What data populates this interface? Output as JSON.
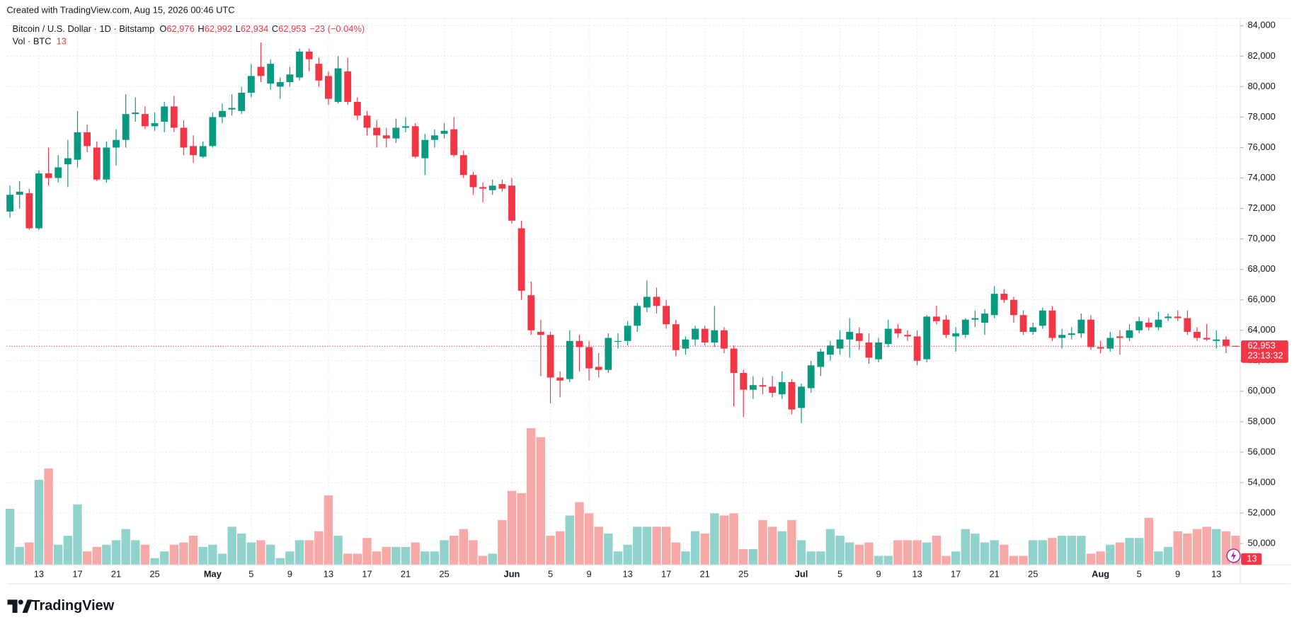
{
  "header": {
    "created": "Created with TradingView.com, Aug 15, 2026 00:46 UTC",
    "symbol": "Bitcoin / U.S. Dollar · 1D · Bitstamp",
    "ohlc": [
      {
        "key": "O",
        "label": "62,976"
      },
      {
        "key": "H",
        "label": "62,992"
      },
      {
        "key": "L",
        "label": "62,934"
      },
      {
        "key": "C",
        "label": "62,953"
      }
    ],
    "change": "−23 (−0.04%)",
    "volume_title": "Vol · BTC",
    "volume_label": "13"
  },
  "price_tag": {
    "label": "62,953",
    "countdown": "23:13:32"
  },
  "volume_tag": "13",
  "logo": "TradingView",
  "chart_data": {
    "type": "candlestick",
    "up_color": "#089981",
    "down_color": "#f23645",
    "up_volume_color": "#92d2cc",
    "down_volume_color": "#f7a9a7",
    "grid": true,
    "open": [
      71800,
      72900,
      73000,
      70700,
      74300,
      74000,
      74900,
      75200,
      77000,
      76000,
      73900,
      76000,
      76500,
      78200,
      78200,
      77400,
      77700,
      78700,
      77300,
      76100,
      75400,
      76100,
      78000,
      78500,
      78400,
      79600,
      81300,
      80200,
      80000,
      80300,
      80600,
      82300,
      81500,
      80700,
      79000,
      81000,
      79000,
      78100,
      77300,
      76800,
      76600,
      77300,
      77400,
      75300,
      76500,
      76900,
      77200,
      75500,
      74200,
      73400,
      73200,
      73600,
      73500,
      70700,
      66300,
      63900,
      63700,
      60900,
      60800,
      63300,
      62900,
      61600,
      61400,
      63300,
      63300,
      64300,
      65500,
      66200,
      65600,
      64400,
      62800,
      63400,
      64100,
      63200,
      64000,
      62800,
      61200,
      60100,
      60400,
      60300,
      59800,
      60600,
      58900,
      60200,
      61600,
      62400,
      62800,
      63400,
      63800,
      63200,
      62100,
      63100,
      64100,
      63700,
      63600,
      62100,
      64900,
      64700,
      63600,
      63700,
      64700,
      64500,
      65000,
      66400,
      66000,
      65000,
      63900,
      64300,
      65300,
      63500,
      63700,
      63800,
      64700,
      62900,
      62800,
      63600,
      63500,
      64000,
      64500,
      64200,
      64800,
      64900,
      64800,
      63900,
      63500,
      63300,
      63400,
      62976
    ],
    "high": [
      73500,
      73800,
      73300,
      74500,
      76000,
      75500,
      76500,
      78400,
      77500,
      76400,
      76400,
      77200,
      79500,
      79300,
      78700,
      78300,
      79000,
      79400,
      77800,
      76800,
      76400,
      78300,
      78900,
      79500,
      80000,
      81500,
      82900,
      81800,
      80600,
      81300,
      82500,
      82500,
      81900,
      81000,
      82000,
      81900,
      79300,
      78400,
      77800,
      77300,
      77900,
      78000,
      77600,
      76900,
      77200,
      77600,
      78000,
      75800,
      74400,
      73700,
      73900,
      73900,
      74000,
      71200,
      67200,
      64700,
      63900,
      61300,
      64000,
      63700,
      63300,
      62500,
      63800,
      63800,
      64600,
      65800,
      67300,
      66800,
      66000,
      64700,
      63600,
      64300,
      64300,
      65600,
      64200,
      63000,
      61400,
      61000,
      60900,
      61000,
      61300,
      60800,
      60500,
      62000,
      62800,
      63300,
      64000,
      64800,
      64200,
      63800,
      63500,
      64700,
      64400,
      64000,
      64000,
      65000,
      65600,
      65000,
      64200,
      64800,
      65300,
      65400,
      66900,
      66700,
      66200,
      65300,
      64500,
      65500,
      65600,
      64100,
      64200,
      65100,
      65000,
      63300,
      63900,
      64000,
      64400,
      64900,
      64800,
      65200,
      65100,
      65300,
      65300,
      64200,
      64400,
      64000,
      63600,
      62992
    ],
    "low": [
      71400,
      72000,
      70600,
      70600,
      73500,
      73700,
      73400,
      74700,
      75700,
      73800,
      73700,
      74800,
      76000,
      77700,
      77200,
      77100,
      77000,
      77000,
      75500,
      75000,
      75300,
      76000,
      77600,
      78100,
      78200,
      79300,
      80300,
      79800,
      79200,
      80000,
      80400,
      81000,
      80000,
      78800,
      78900,
      78800,
      77800,
      76800,
      76000,
      76000,
      76300,
      77000,
      75300,
      74200,
      76000,
      76600,
      75400,
      74000,
      72900,
      72400,
      72900,
      73100,
      71000,
      66000,
      63700,
      61000,
      59200,
      59600,
      60600,
      61300,
      60700,
      60900,
      61200,
      62800,
      63000,
      63900,
      65200,
      65100,
      64100,
      62300,
      62400,
      63000,
      63000,
      62900,
      62500,
      59000,
      58300,
      59500,
      59800,
      59600,
      59500,
      58500,
      57900,
      59900,
      61000,
      62000,
      62400,
      62200,
      62700,
      61800,
      61900,
      62900,
      63500,
      63300,
      61700,
      61900,
      64400,
      63500,
      62600,
      63500,
      64200,
      63700,
      64800,
      65800,
      64500,
      63700,
      63700,
      64100,
      63300,
      62800,
      63400,
      63500,
      62700,
      62500,
      62600,
      62400,
      63300,
      63800,
      64000,
      64000,
      64600,
      64600,
      63700,
      63300,
      63300,
      62800,
      62500,
      62934
    ],
    "close": [
      72900,
      73100,
      70700,
      74300,
      74000,
      74700,
      75300,
      77000,
      76100,
      73900,
      76000,
      76500,
      78200,
      78300,
      77400,
      77600,
      78700,
      77300,
      76000,
      75500,
      76100,
      78000,
      78400,
      78600,
      79600,
      80700,
      80700,
      81500,
      80300,
      80800,
      82300,
      81800,
      80400,
      79200,
      81200,
      79000,
      78100,
      77300,
      76800,
      76600,
      77300,
      77400,
      75400,
      76500,
      76800,
      77100,
      75500,
      74200,
      73400,
      73300,
      73500,
      73300,
      71200,
      66600,
      64000,
      63700,
      60900,
      60700,
      63300,
      62900,
      61500,
      61400,
      63500,
      63300,
      64300,
      65600,
      66200,
      65600,
      64400,
      62700,
      63400,
      64100,
      63200,
      64000,
      62800,
      61200,
      60100,
      60400,
      60300,
      59900,
      60600,
      58800,
      60300,
      61700,
      62600,
      63000,
      63400,
      63900,
      63300,
      62200,
      63200,
      64100,
      63800,
      63600,
      62000,
      64900,
      64600,
      63700,
      63800,
      64700,
      64800,
      65100,
      66400,
      66000,
      65000,
      63900,
      64200,
      65300,
      63500,
      63700,
      63800,
      64700,
      62900,
      62800,
      63500,
      63500,
      64000,
      64600,
      64200,
      64700,
      64900,
      64800,
      63900,
      63500,
      63400,
      63400,
      62976,
      62953
    ],
    "volume": [
      25,
      8,
      10,
      38,
      43,
      9,
      13,
      27,
      6,
      8,
      9,
      11,
      16,
      11,
      9,
      3,
      6,
      9,
      10,
      13,
      8,
      9,
      5,
      17,
      14,
      10,
      11,
      9,
      3,
      6,
      11,
      11,
      15,
      31,
      13,
      5,
      5,
      12,
      6,
      8,
      8,
      8,
      10,
      6,
      6,
      11,
      13,
      16,
      11,
      4,
      5,
      20,
      33,
      32,
      61,
      57,
      13,
      15,
      22,
      28,
      23,
      17,
      14,
      6,
      9,
      17,
      17,
      17,
      17,
      10,
      6,
      15,
      14,
      23,
      22,
      23,
      7,
      7,
      20,
      17,
      15,
      20,
      11,
      6,
      6,
      16,
      13,
      10,
      9,
      10,
      4,
      4,
      11,
      11,
      11,
      10,
      13,
      4,
      6,
      16,
      14,
      10,
      11,
      9,
      4,
      4,
      11,
      11,
      12,
      13,
      13,
      13,
      5,
      6,
      9,
      10,
      12,
      12,
      21,
      6,
      8,
      15,
      14,
      16,
      17,
      16,
      15,
      13
    ],
    "ylim": [
      48600,
      84490
    ],
    "yticks": [
      {
        "value": 50000,
        "label": "50,000"
      },
      {
        "value": 52000,
        "label": "52,000"
      },
      {
        "value": 54000,
        "label": "54,000"
      },
      {
        "value": 56000,
        "label": "56,000"
      },
      {
        "value": 58000,
        "label": "58,000"
      },
      {
        "value": 60000,
        "label": "60,000"
      },
      {
        "value": 62000,
        "label": "62,000"
      },
      {
        "value": 64000,
        "label": "64,000"
      },
      {
        "value": 66000,
        "label": "66,000"
      },
      {
        "value": 68000,
        "label": "68,000"
      },
      {
        "value": 70000,
        "label": "70,000"
      },
      {
        "value": 72000,
        "label": "72,000"
      },
      {
        "value": 74000,
        "label": "74,000"
      },
      {
        "value": 76000,
        "label": "76,000"
      },
      {
        "value": 78000,
        "label": "78,000"
      },
      {
        "value": 80000,
        "label": "80,000"
      },
      {
        "value": 82000,
        "label": "82,000"
      },
      {
        "value": 84000,
        "label": "84,000"
      }
    ],
    "xticks": [
      {
        "value": 3,
        "label": "13"
      },
      {
        "value": 7,
        "label": "17"
      },
      {
        "value": 11,
        "label": "21"
      },
      {
        "value": 15,
        "label": "25"
      },
      {
        "value": 21,
        "label": "May"
      },
      {
        "value": 25,
        "label": "5"
      },
      {
        "value": 29,
        "label": "9"
      },
      {
        "value": 33,
        "label": "13"
      },
      {
        "value": 37,
        "label": "17"
      },
      {
        "value": 41,
        "label": "21"
      },
      {
        "value": 45,
        "label": "25"
      },
      {
        "value": 52,
        "label": "Jun"
      },
      {
        "value": 56,
        "label": "5"
      },
      {
        "value": 60,
        "label": "9"
      },
      {
        "value": 64,
        "label": "13"
      },
      {
        "value": 68,
        "label": "17"
      },
      {
        "value": 72,
        "label": "21"
      },
      {
        "value": 76,
        "label": "25"
      },
      {
        "value": 82,
        "label": "Jul"
      },
      {
        "value": 86,
        "label": "5"
      },
      {
        "value": 90,
        "label": "9"
      },
      {
        "value": 94,
        "label": "13"
      },
      {
        "value": 98,
        "label": "17"
      },
      {
        "value": 102,
        "label": "21"
      },
      {
        "value": 106,
        "label": "25"
      },
      {
        "value": 113,
        "label": "Aug"
      },
      {
        "value": 117,
        "label": "5"
      },
      {
        "value": 121,
        "label": "9"
      },
      {
        "value": 125,
        "label": "13"
      }
    ]
  }
}
